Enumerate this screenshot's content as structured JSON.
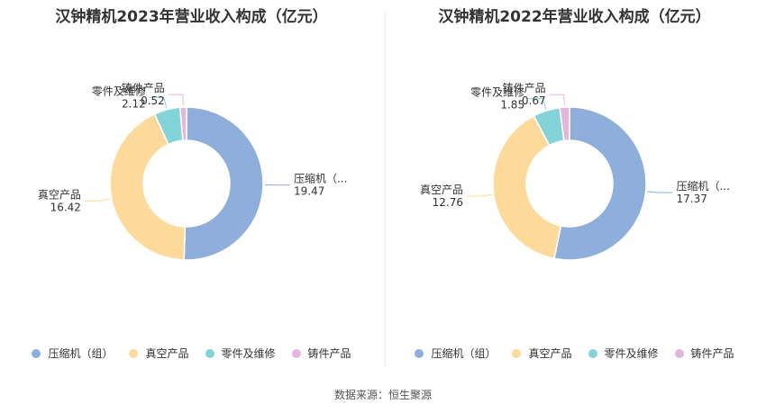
{
  "footer": {
    "source": "数据来源：恒生聚源"
  },
  "colors": [
    "#8eaedb",
    "#fdd99a",
    "#82d4d8",
    "#e4b6dc"
  ],
  "chart_data": [
    {
      "type": "pie",
      "title": "汉钟精机2023年营业收入构成（亿元）",
      "categories": [
        "压缩机（组）",
        "真空产品",
        "零件及维修",
        "铸件产品"
      ],
      "slice_labels": [
        "压缩机（...",
        "真空产品",
        "零件及维修",
        "铸件产品"
      ],
      "values": [
        19.47,
        16.42,
        2.12,
        0.52
      ],
      "value_labels": [
        "19.47",
        "16.42",
        "2.12",
        "0.52"
      ],
      "legend": "bottom",
      "donut": true
    },
    {
      "type": "pie",
      "title": "汉钟精机2022年营业收入构成（亿元）",
      "categories": [
        "压缩机（组）",
        "真空产品",
        "零件及维修",
        "铸件产品"
      ],
      "slice_labels": [
        "压缩机（...",
        "真空产品",
        "零件及维修",
        "铸件产品"
      ],
      "values": [
        17.37,
        12.76,
        1.85,
        0.67
      ],
      "value_labels": [
        "17.37",
        "12.76",
        "1.85",
        "0.67"
      ],
      "legend": "bottom",
      "donut": true
    }
  ]
}
